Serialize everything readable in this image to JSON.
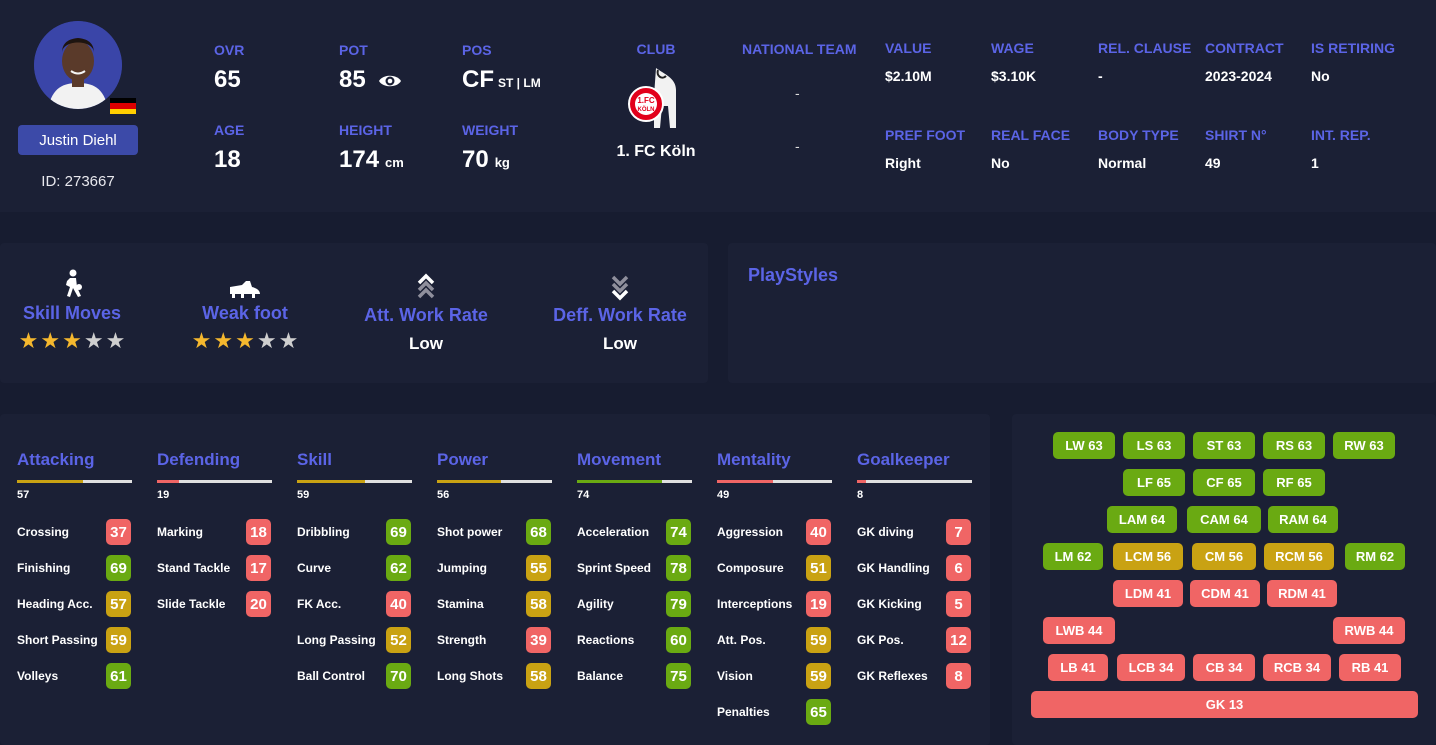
{
  "player": {
    "name": "Justin Diehl",
    "id_text": "ID: 273667",
    "flag_colors": [
      "#000000",
      "#dd0000",
      "#ffce00"
    ]
  },
  "header": {
    "ovr_label": "OVR",
    "ovr": "65",
    "pot_label": "POT",
    "pot": "85",
    "pos_label": "POS",
    "pos": "CF",
    "alt_pos": "ST | LM",
    "age_label": "AGE",
    "age": "18",
    "height_label": "HEIGHT",
    "height": "174",
    "height_unit": "cm",
    "weight_label": "WEIGHT",
    "weight": "70",
    "weight_unit": "kg",
    "club_label": "CLUB",
    "club_name": "1. FC Köln",
    "national_team_label": "NATIONAL TEAM",
    "national_team": "-",
    "national_team_2": "-",
    "value_label": "VALUE",
    "value": "$2.10M",
    "wage_label": "WAGE",
    "wage": "$3.10K",
    "rel_clause_label": "REL. CLAUSE",
    "rel_clause": "-",
    "contract_label": "CONTRACT",
    "contract": "2023-2024",
    "retiring_label": "IS RETIRING",
    "retiring": "No",
    "pref_foot_label": "PREF FOOT",
    "pref_foot": "Right",
    "real_face_label": "REAL FACE",
    "real_face": "No",
    "body_type_label": "BODY TYPE",
    "body_type": "Normal",
    "shirt_label": "SHIRT N°",
    "shirt": "49",
    "int_rep_label": "INT. REP.",
    "int_rep": "1"
  },
  "traits": {
    "skill_moves_label": "Skill Moves",
    "skill_moves_stars": 3,
    "weak_foot_label": "Weak foot",
    "weak_foot_stars": 3,
    "att_work_rate_label": "Att. Work Rate",
    "att_work_rate": "Low",
    "def_work_rate_label": "Deff. Work Rate",
    "def_work_rate": "Low"
  },
  "playstyles": {
    "title": "PlayStyles"
  },
  "colors": {
    "green": "#6aaa12",
    "yellow": "#c9a213",
    "red": "#f06565",
    "accent": "#5b64e6",
    "star_on": "#f5b82e",
    "star_off": "#cfcfcf"
  },
  "categories": [
    {
      "title": "Attacking",
      "avg": "57",
      "attrs": [
        {
          "name": "Crossing",
          "value": "37"
        },
        {
          "name": "Finishing",
          "value": "69"
        },
        {
          "name": "Heading Acc.",
          "value": "57"
        },
        {
          "name": "Short Passing",
          "value": "59"
        },
        {
          "name": "Volleys",
          "value": "61"
        }
      ]
    },
    {
      "title": "Defending",
      "avg": "19",
      "attrs": [
        {
          "name": "Marking",
          "value": "18"
        },
        {
          "name": "Stand Tackle",
          "value": "17"
        },
        {
          "name": "Slide Tackle",
          "value": "20"
        }
      ]
    },
    {
      "title": "Skill",
      "avg": "59",
      "attrs": [
        {
          "name": "Dribbling",
          "value": "69"
        },
        {
          "name": "Curve",
          "value": "62"
        },
        {
          "name": "FK Acc.",
          "value": "40"
        },
        {
          "name": "Long Passing",
          "value": "52"
        },
        {
          "name": "Ball Control",
          "value": "70"
        }
      ]
    },
    {
      "title": "Power",
      "avg": "56",
      "attrs": [
        {
          "name": "Shot power",
          "value": "68"
        },
        {
          "name": "Jumping",
          "value": "55"
        },
        {
          "name": "Stamina",
          "value": "58"
        },
        {
          "name": "Strength",
          "value": "39"
        },
        {
          "name": "Long Shots",
          "value": "58"
        }
      ]
    },
    {
      "title": "Movement",
      "avg": "74",
      "attrs": [
        {
          "name": "Acceleration",
          "value": "74"
        },
        {
          "name": "Sprint Speed",
          "value": "78"
        },
        {
          "name": "Agility",
          "value": "79"
        },
        {
          "name": "Reactions",
          "value": "60"
        },
        {
          "name": "Balance",
          "value": "75"
        }
      ]
    },
    {
      "title": "Mentality",
      "avg": "49",
      "attrs": [
        {
          "name": "Aggression",
          "value": "40"
        },
        {
          "name": "Composure",
          "value": "51"
        },
        {
          "name": "Interceptions",
          "value": "19"
        },
        {
          "name": "Att. Pos.",
          "value": "59"
        },
        {
          "name": "Vision",
          "value": "59"
        },
        {
          "name": "Penalties",
          "value": "65"
        }
      ]
    },
    {
      "title": "Goalkeeper",
      "avg": "8",
      "attrs": [
        {
          "name": "GK diving",
          "value": "7"
        },
        {
          "name": "GK Handling",
          "value": "6"
        },
        {
          "name": "GK Kicking",
          "value": "5"
        },
        {
          "name": "GK Pos.",
          "value": "12"
        },
        {
          "name": "GK Reflexes",
          "value": "8"
        }
      ]
    }
  ],
  "positions": [
    {
      "label": "LW 63",
      "rating": 63
    },
    {
      "label": "LS 63",
      "rating": 63
    },
    {
      "label": "ST 63",
      "rating": 63
    },
    {
      "label": "RS 63",
      "rating": 63
    },
    {
      "label": "RW 63",
      "rating": 63
    },
    {
      "label": "LF 65",
      "rating": 65
    },
    {
      "label": "CF 65",
      "rating": 65
    },
    {
      "label": "RF 65",
      "rating": 65
    },
    {
      "label": "LAM 64",
      "rating": 64
    },
    {
      "label": "CAM 64",
      "rating": 64
    },
    {
      "label": "RAM 64",
      "rating": 64
    },
    {
      "label": "LM 62",
      "rating": 62
    },
    {
      "label": "LCM 56",
      "rating": 56
    },
    {
      "label": "CM 56",
      "rating": 56
    },
    {
      "label": "RCM 56",
      "rating": 56
    },
    {
      "label": "RM 62",
      "rating": 62
    },
    {
      "label": "LDM 41",
      "rating": 41
    },
    {
      "label": "CDM 41",
      "rating": 41
    },
    {
      "label": "RDM 41",
      "rating": 41
    },
    {
      "label": "LWB 44",
      "rating": 44
    },
    {
      "label": "RWB 44",
      "rating": 44
    },
    {
      "label": "LB 41",
      "rating": 41
    },
    {
      "label": "LCB 34",
      "rating": 34
    },
    {
      "label": "CB 34",
      "rating": 34
    },
    {
      "label": "RCB 34",
      "rating": 34
    },
    {
      "label": "RB 41",
      "rating": 41
    },
    {
      "label": "GK 13",
      "rating": 13
    }
  ]
}
